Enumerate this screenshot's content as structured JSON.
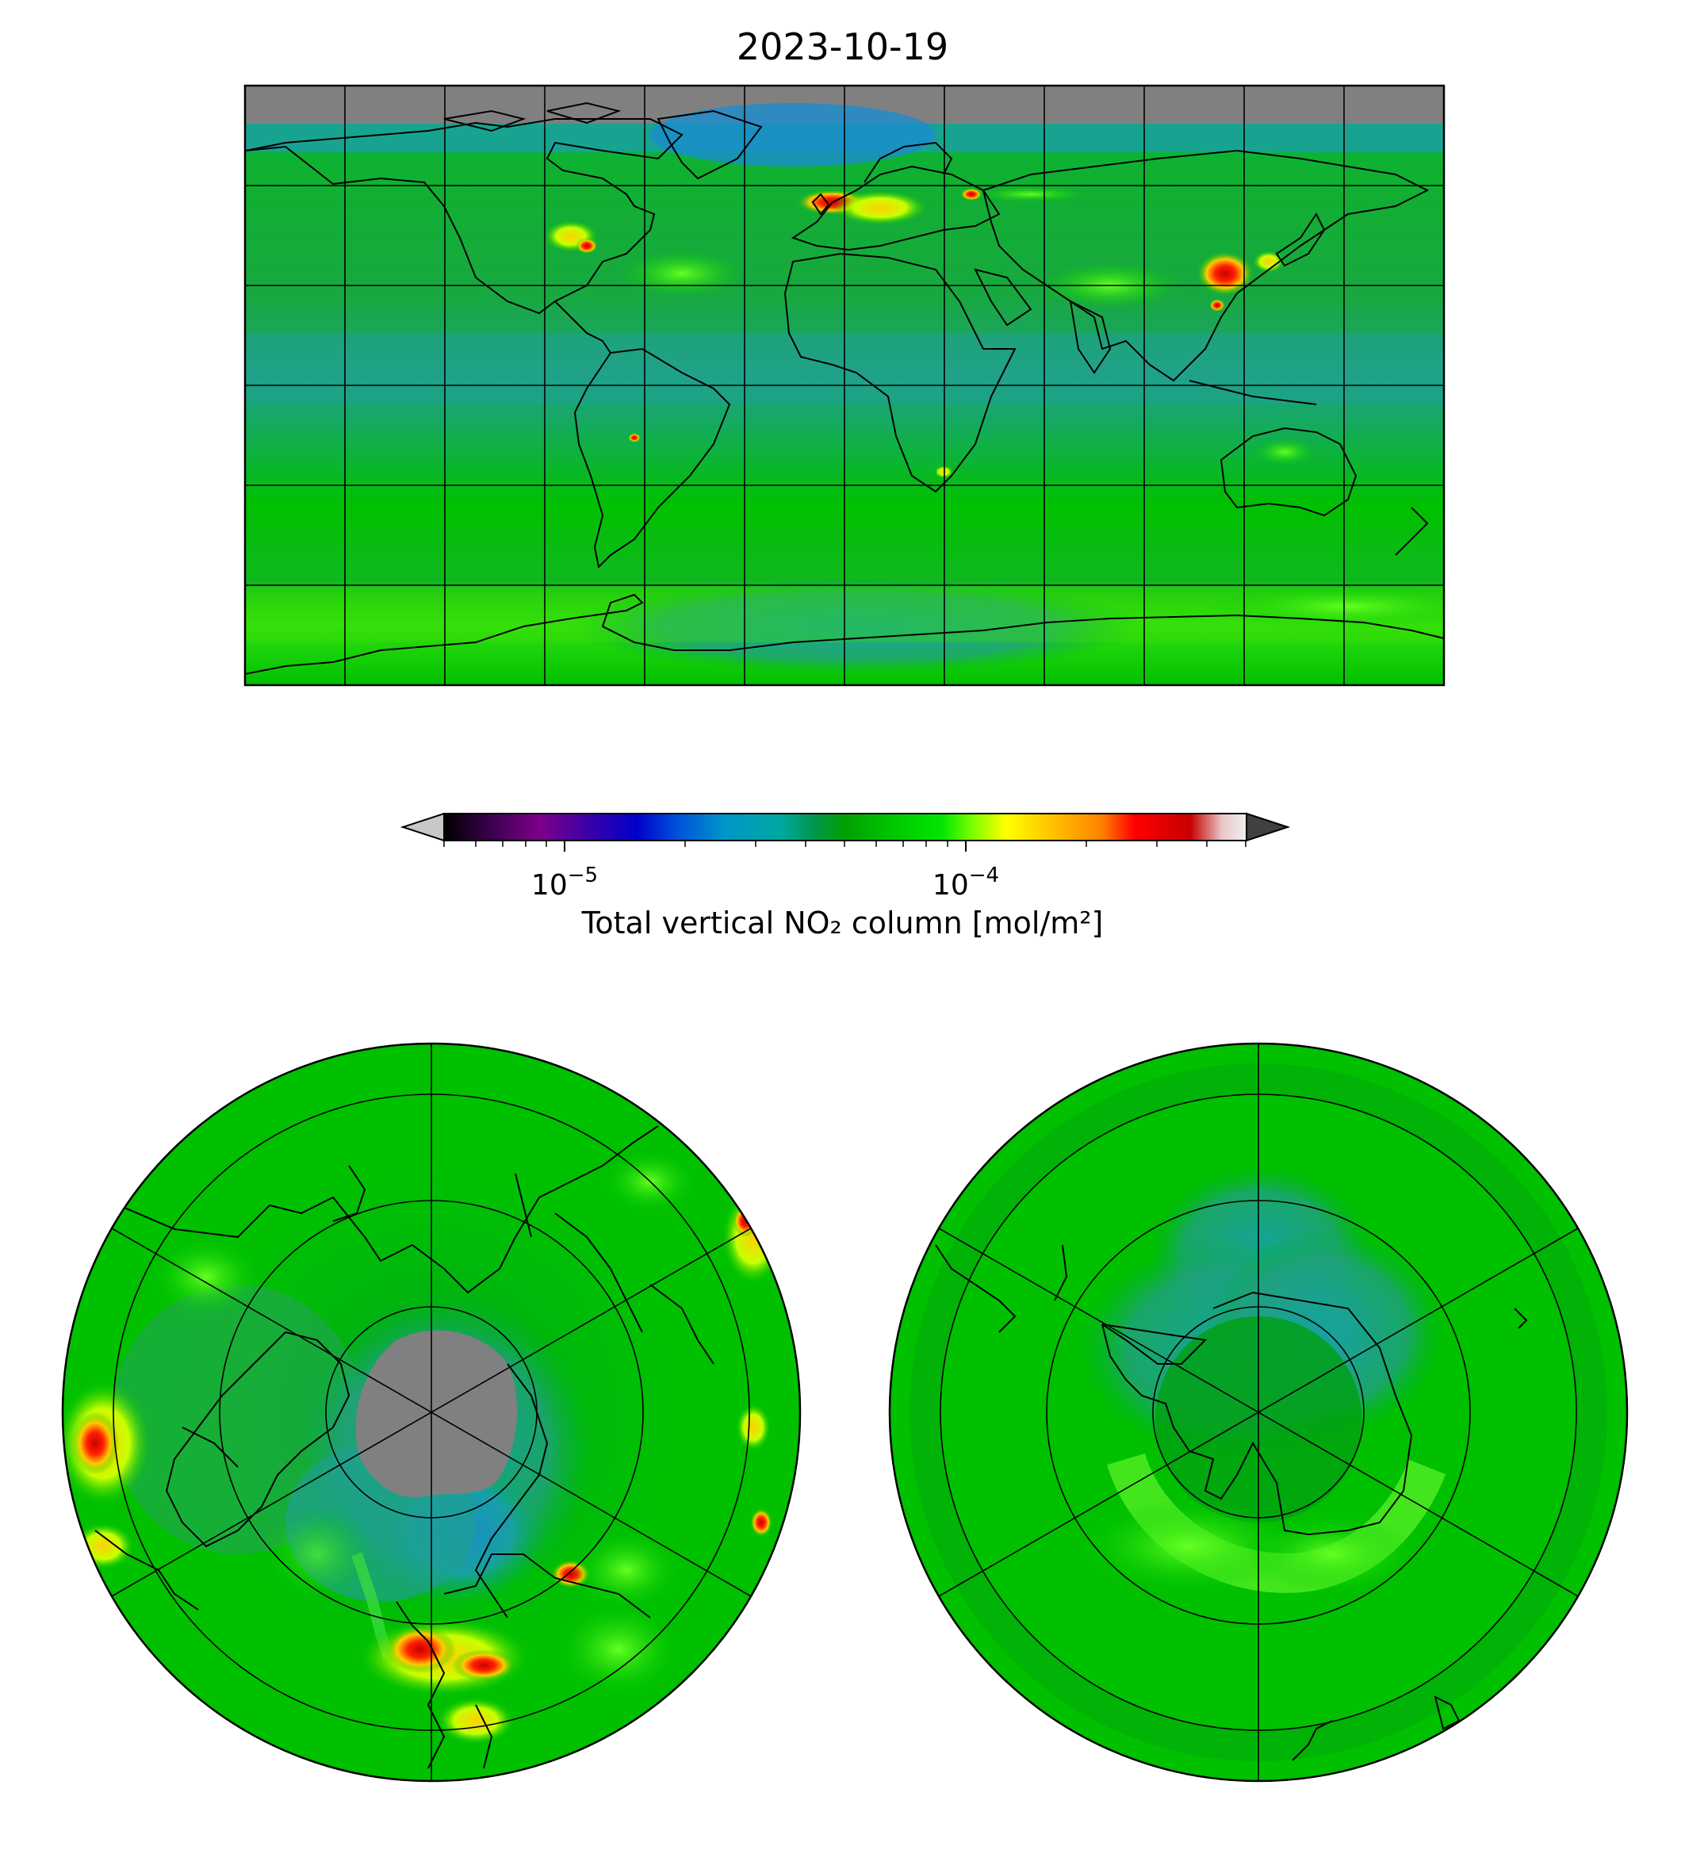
{
  "title": "2023-10-19",
  "colorbar": {
    "label": "Total vertical NO₂ column [mol/m²]",
    "ticks": [
      {
        "base": "10",
        "exp": "−5",
        "value": 1e-05
      },
      {
        "base": "10",
        "exp": "−4",
        "value": 0.0001
      }
    ],
    "range": [
      5e-06,
      0.0005
    ],
    "scale": "log",
    "extend": "both",
    "colors": [
      "#000000",
      "#3d0050",
      "#7d008a",
      "#3a00a8",
      "#0000c8",
      "#0050dc",
      "#0096c8",
      "#00a8a0",
      "#009650",
      "#00a000",
      "#00c800",
      "#00e600",
      "#80ff00",
      "#ffff00",
      "#ffc000",
      "#ff8000",
      "#ff0000",
      "#c80000",
      "#e8c8c8",
      "#f0f0f0"
    ],
    "under_color": "#c8c8c8",
    "over_color": "#404040"
  },
  "colors": {
    "background_green": "#00c000",
    "no_data_gray": "#808080",
    "low_teal": "#1aa39a",
    "hotspot_red": "#e60000",
    "hotspot_yellow": "#e8e800",
    "coastline": "#000000",
    "gridline": "#000000"
  },
  "maps": [
    {
      "name": "global-map",
      "projection": "plate-carree"
    },
    {
      "name": "north-polar-map",
      "projection": "north-polar-stereographic"
    },
    {
      "name": "south-polar-map",
      "projection": "south-polar-stereographic"
    }
  ]
}
